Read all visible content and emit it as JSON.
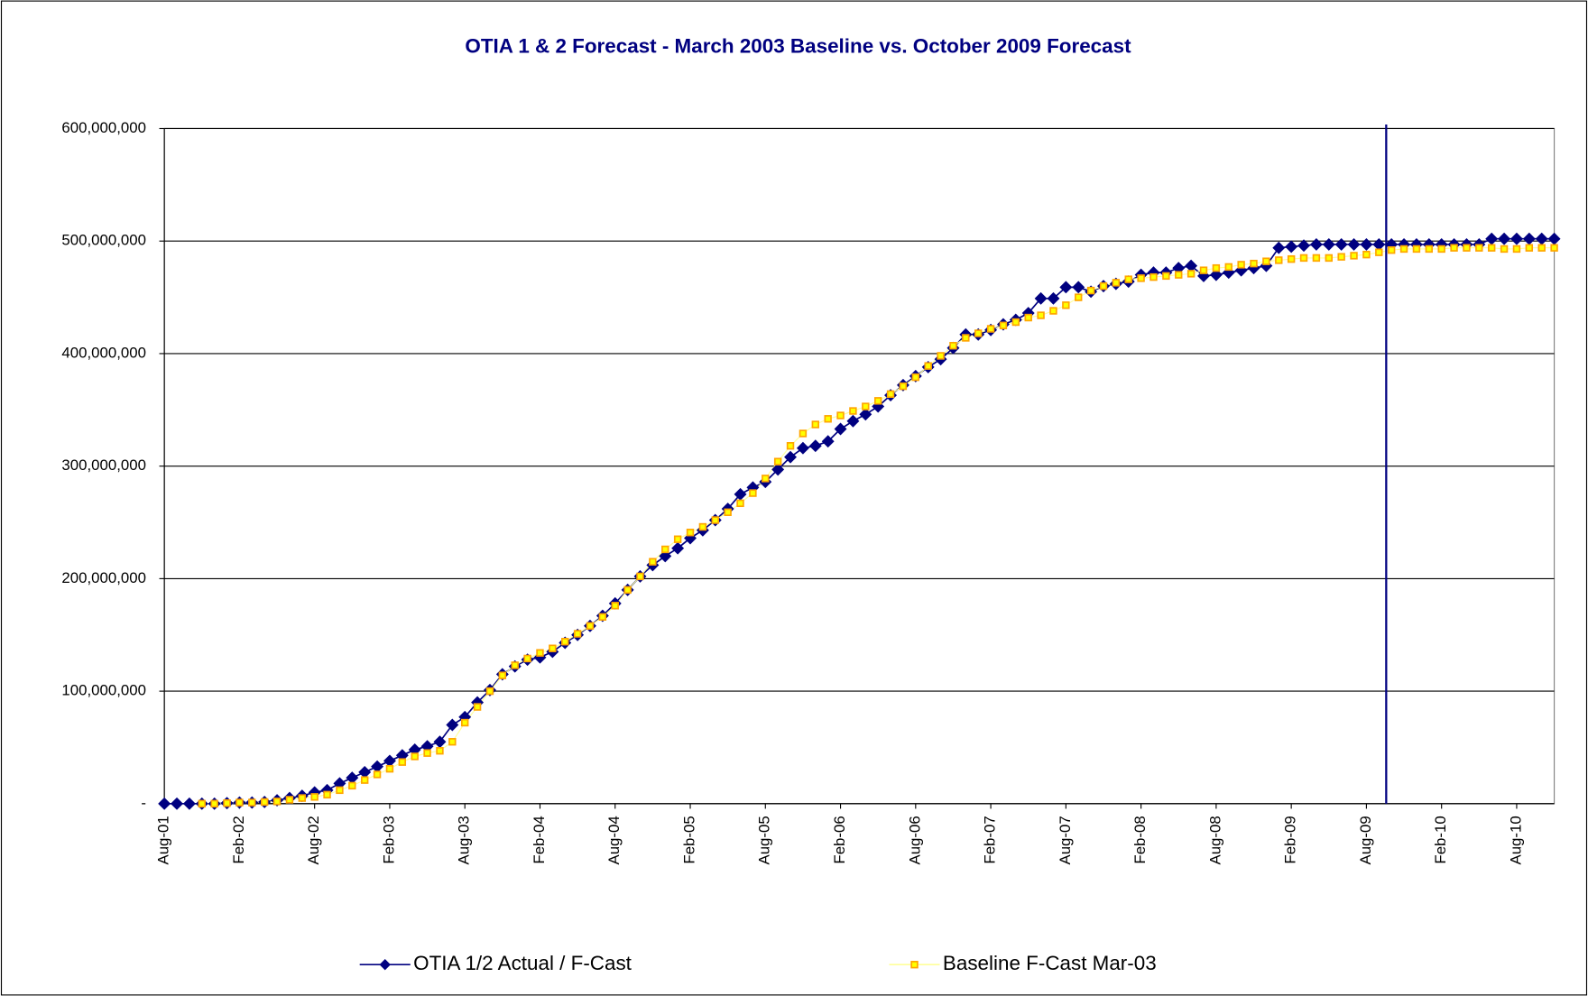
{
  "chart_data": {
    "type": "line",
    "title": "OTIA 1 & 2 Forecast - March 2003 Baseline vs. October 2009 Forecast",
    "categories": [
      "Aug-01",
      null,
      null,
      null,
      null,
      null,
      "Feb-02",
      null,
      null,
      null,
      null,
      null,
      "Aug-02",
      null,
      null,
      null,
      null,
      null,
      "Feb-03",
      null,
      null,
      null,
      null,
      null,
      "Aug-03",
      null,
      null,
      null,
      null,
      null,
      "Feb-04",
      null,
      null,
      null,
      null,
      null,
      "Aug-04",
      null,
      null,
      null,
      null,
      null,
      "Feb-05",
      null,
      null,
      null,
      null,
      null,
      "Aug-05",
      null,
      null,
      null,
      null,
      null,
      "Feb-06",
      null,
      null,
      null,
      null,
      null,
      "Aug-06",
      null,
      null,
      null,
      null,
      null,
      "Feb-07",
      null,
      null,
      null,
      null,
      null,
      "Aug-07",
      null,
      null,
      null,
      null,
      null,
      "Feb-08",
      null,
      null,
      null,
      null,
      null,
      "Aug-08",
      null,
      null,
      null,
      null,
      null,
      "Feb-09",
      null,
      null,
      null,
      null,
      null,
      "Aug-09",
      null,
      null,
      null,
      null,
      null,
      "Feb-10",
      null,
      null,
      null,
      null,
      null,
      "Aug-10",
      null,
      null,
      null
    ],
    "series": [
      {
        "name": "OTIA 1/2 Actual / F-Cast",
        "color": "#000080",
        "marker": "diamond",
        "values": [
          0,
          0,
          0,
          0,
          0,
          500000,
          1000000,
          1000000,
          1500000,
          3000000,
          5000000,
          7000000,
          10000000,
          12000000,
          18000000,
          23000000,
          28000000,
          33000000,
          38000000,
          43000000,
          48000000,
          51000000,
          55000000,
          70000000,
          77000000,
          90000000,
          101000000,
          115000000,
          122000000,
          128000000,
          130000000,
          135000000,
          143000000,
          150000000,
          158000000,
          167000000,
          178000000,
          190000000,
          202000000,
          212000000,
          220000000,
          227000000,
          236000000,
          243000000,
          252000000,
          262000000,
          275000000,
          281000000,
          286000000,
          297000000,
          308000000,
          316000000,
          318000000,
          322000000,
          333000000,
          340000000,
          346000000,
          353000000,
          363000000,
          372000000,
          380000000,
          388000000,
          395000000,
          405000000,
          417000000,
          417000000,
          421000000,
          426000000,
          430000000,
          436000000,
          449000000,
          449000000,
          459000000,
          459000000,
          455000000,
          460000000,
          462000000,
          464000000,
          470000000,
          472000000,
          472000000,
          476000000,
          478000000,
          469000000,
          470000000,
          472000000,
          474000000,
          476000000,
          478000000,
          494000000,
          495000000,
          496000000,
          497000000,
          497000000,
          497000000,
          497000000,
          497000000,
          497000000,
          497000000,
          497000000,
          497000000,
          497000000,
          497000000,
          497000000,
          497000000,
          497000000,
          502000000,
          502000000,
          502000000,
          502000000,
          502000000,
          502000000
        ]
      },
      {
        "name": "Baseline F-Cast Mar-03",
        "color": "#ffa500",
        "marker": "square",
        "values": [
          null,
          null,
          null,
          0,
          0,
          500000,
          1000000,
          1000000,
          1500000,
          2000000,
          3500000,
          5000000,
          6000000,
          8000000,
          12000000,
          16000000,
          21000000,
          26000000,
          31000000,
          37000000,
          42000000,
          45000000,
          47000000,
          55000000,
          72000000,
          86000000,
          100000000,
          114000000,
          123000000,
          129000000,
          134000000,
          138000000,
          144000000,
          151000000,
          158000000,
          166000000,
          176000000,
          190000000,
          202000000,
          215000000,
          226000000,
          235000000,
          241000000,
          246000000,
          252000000,
          259000000,
          267000000,
          276000000,
          289000000,
          304000000,
          318000000,
          329000000,
          337000000,
          342000000,
          345000000,
          349000000,
          353000000,
          358000000,
          364000000,
          371000000,
          379000000,
          389000000,
          398000000,
          407000000,
          414000000,
          418000000,
          422000000,
          425000000,
          428000000,
          432000000,
          434000000,
          438000000,
          443000000,
          450000000,
          456000000,
          460000000,
          463000000,
          466000000,
          467000000,
          468000000,
          469000000,
          470000000,
          471000000,
          474000000,
          476000000,
          477000000,
          479000000,
          480000000,
          482000000,
          483000000,
          484000000,
          485000000,
          485000000,
          485000000,
          486000000,
          487000000,
          488000000,
          490000000,
          492000000,
          493000000,
          493000000,
          493000000,
          493000000,
          494000000,
          494000000,
          494000000,
          494000000,
          493000000,
          493000000,
          494000000,
          494000000,
          494000000
        ]
      }
    ],
    "ylim": [
      0,
      600000000
    ],
    "yticks": [
      {
        "value": 0,
        "label": "-"
      },
      {
        "value": 100000000,
        "label": "100,000,000"
      },
      {
        "value": 200000000,
        "label": "200,000,000"
      },
      {
        "value": 300000000,
        "label": "300,000,000"
      },
      {
        "value": 400000000,
        "label": "400,000,000"
      },
      {
        "value": 500000000,
        "label": "500,000,000"
      },
      {
        "value": 600000000,
        "label": "600,000,000"
      }
    ],
    "grid": true,
    "legend": "bottom"
  }
}
